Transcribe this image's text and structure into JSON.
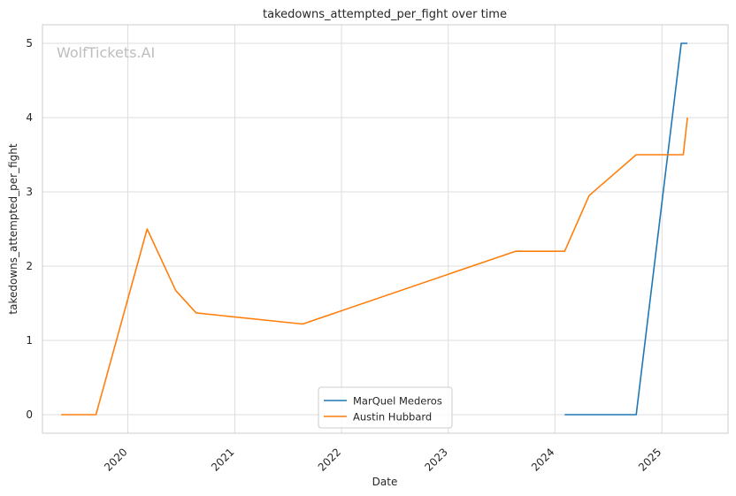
{
  "watermark": "WolfTickets.AI",
  "chart_data": {
    "type": "line",
    "title": "takedowns_attempted_per_fight over time",
    "xlabel": "Date",
    "ylabel": "takedowns_attempted_per_fight",
    "x_type": "date",
    "xlim": [
      "2019-03-15",
      "2025-08-15"
    ],
    "ylim": [
      -0.25,
      5.25
    ],
    "x_ticks": [
      {
        "date": "2020-01-01",
        "label": "2020"
      },
      {
        "date": "2021-01-01",
        "label": "2021"
      },
      {
        "date": "2022-01-01",
        "label": "2022"
      },
      {
        "date": "2023-01-01",
        "label": "2023"
      },
      {
        "date": "2024-01-01",
        "label": "2024"
      },
      {
        "date": "2025-01-01",
        "label": "2025"
      }
    ],
    "y_ticks": [
      0,
      1,
      2,
      3,
      4,
      5
    ],
    "grid": true,
    "legend_position": "bottom-center",
    "series": [
      {
        "name": "MarQuel Mederos",
        "color": "#1f77b4",
        "points": [
          {
            "x": "2024-02-03",
            "y": 0
          },
          {
            "x": "2024-10-05",
            "y": 0
          },
          {
            "x": "2025-03-08",
            "y": 5
          },
          {
            "x": "2025-03-29",
            "y": 5
          }
        ]
      },
      {
        "name": "Austin Hubbard",
        "color": "#ff7f0e",
        "points": [
          {
            "x": "2019-05-18",
            "y": 0
          },
          {
            "x": "2019-09-14",
            "y": 0
          },
          {
            "x": "2020-03-07",
            "y": 2.5
          },
          {
            "x": "2020-06-13",
            "y": 1.67
          },
          {
            "x": "2020-08-22",
            "y": 1.37
          },
          {
            "x": "2021-08-21",
            "y": 1.22
          },
          {
            "x": "2023-08-19",
            "y": 2.2
          },
          {
            "x": "2024-02-03",
            "y": 2.2
          },
          {
            "x": "2024-04-27",
            "y": 2.95
          },
          {
            "x": "2024-10-05",
            "y": 3.5
          },
          {
            "x": "2025-03-15",
            "y": 3.5
          },
          {
            "x": "2025-03-29",
            "y": 4.0
          }
        ]
      }
    ]
  }
}
